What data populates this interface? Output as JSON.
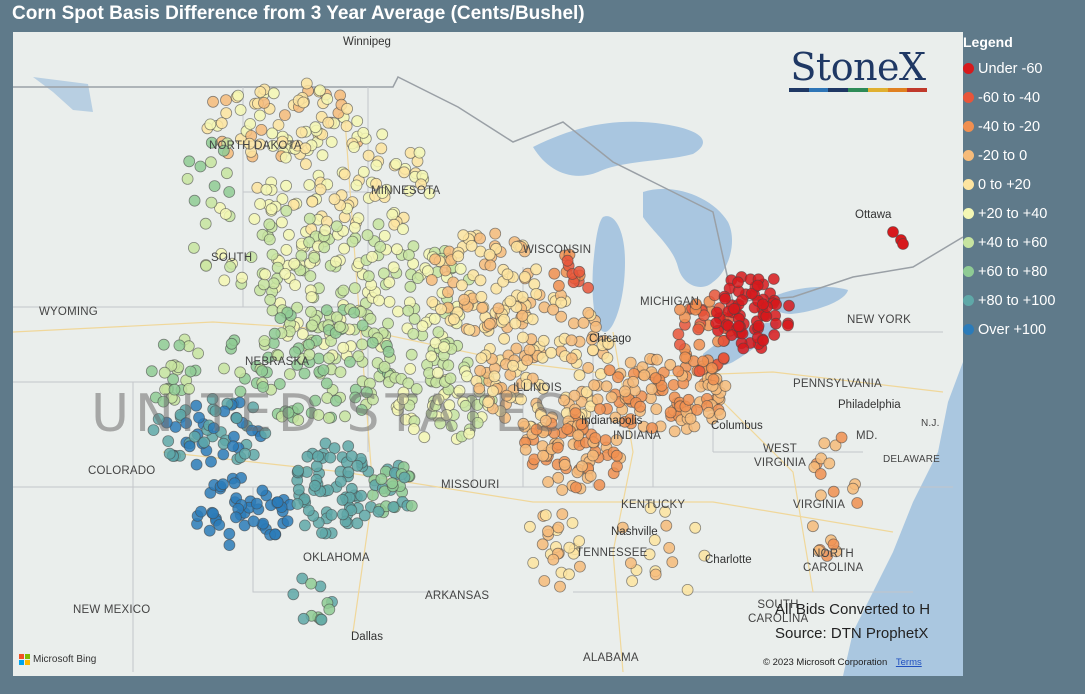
{
  "title": "Corn Spot Basis Difference from 3 Year Average (Cents/Bushel)",
  "legend": {
    "title": "Legend",
    "items": [
      {
        "label": "Under -60",
        "color": "#d7191c"
      },
      {
        "label": "-60 to -40",
        "color": "#e8553a"
      },
      {
        "label": "-40 to -20",
        "color": "#f08f50"
      },
      {
        "label": "-20 to 0",
        "color": "#f6bb7a"
      },
      {
        "label": "0 to +20",
        "color": "#fde4a0"
      },
      {
        "label": "+20 to +40",
        "color": "#f4f7b4"
      },
      {
        "label": "+40 to +60",
        "color": "#c7e4a0"
      },
      {
        "label": "+60 to +80",
        "color": "#8fcb94"
      },
      {
        "label": "+80 to +100",
        "color": "#5fa8a8"
      },
      {
        "label": "Over +100",
        "color": "#2b7bb9"
      }
    ]
  },
  "brand": {
    "name": "StoneX",
    "bar_colors": [
      "#1f3864",
      "#2e75b6",
      "#1f3864",
      "#2e8b57",
      "#e0b030",
      "#e08020",
      "#c0392b"
    ]
  },
  "map": {
    "country_label": "UNITED STATES",
    "state_labels": [
      "NORTH DAKOTA",
      "MINNESOTA",
      "SOUTH",
      "WYOMING",
      "NEBRASKA",
      "COLORADO",
      "MISSOURI",
      "OKLAHOMA",
      "NEW MEXICO",
      "ARKANSAS",
      "KENTUCKY",
      "TENNESSEE",
      "ALABAMA",
      "WEST VIRGINIA",
      "VIRGINIA",
      "NORTH CAROLINA",
      "SOUTH CAROLINA",
      "PENNSYLVANIA",
      "NEW YORK",
      "MD.",
      "DELAWARE",
      "N.J.",
      "WISCONSIN",
      "MICHIGAN",
      "INDIANA",
      "ILLINOIS"
    ],
    "city_labels": [
      "Winnipeg",
      "Ottawa",
      "Chicago",
      "Columbus",
      "Philadelphia",
      "Nashville",
      "Charlotte",
      "Dallas",
      "Indianapolis"
    ],
    "note_lines": [
      "All Bids Converted to H",
      "Source: DTN ProphetX"
    ],
    "attribution": "Microsoft Bing",
    "copyright": "© 2023 Microsoft Corporation",
    "terms": "Terms"
  }
}
